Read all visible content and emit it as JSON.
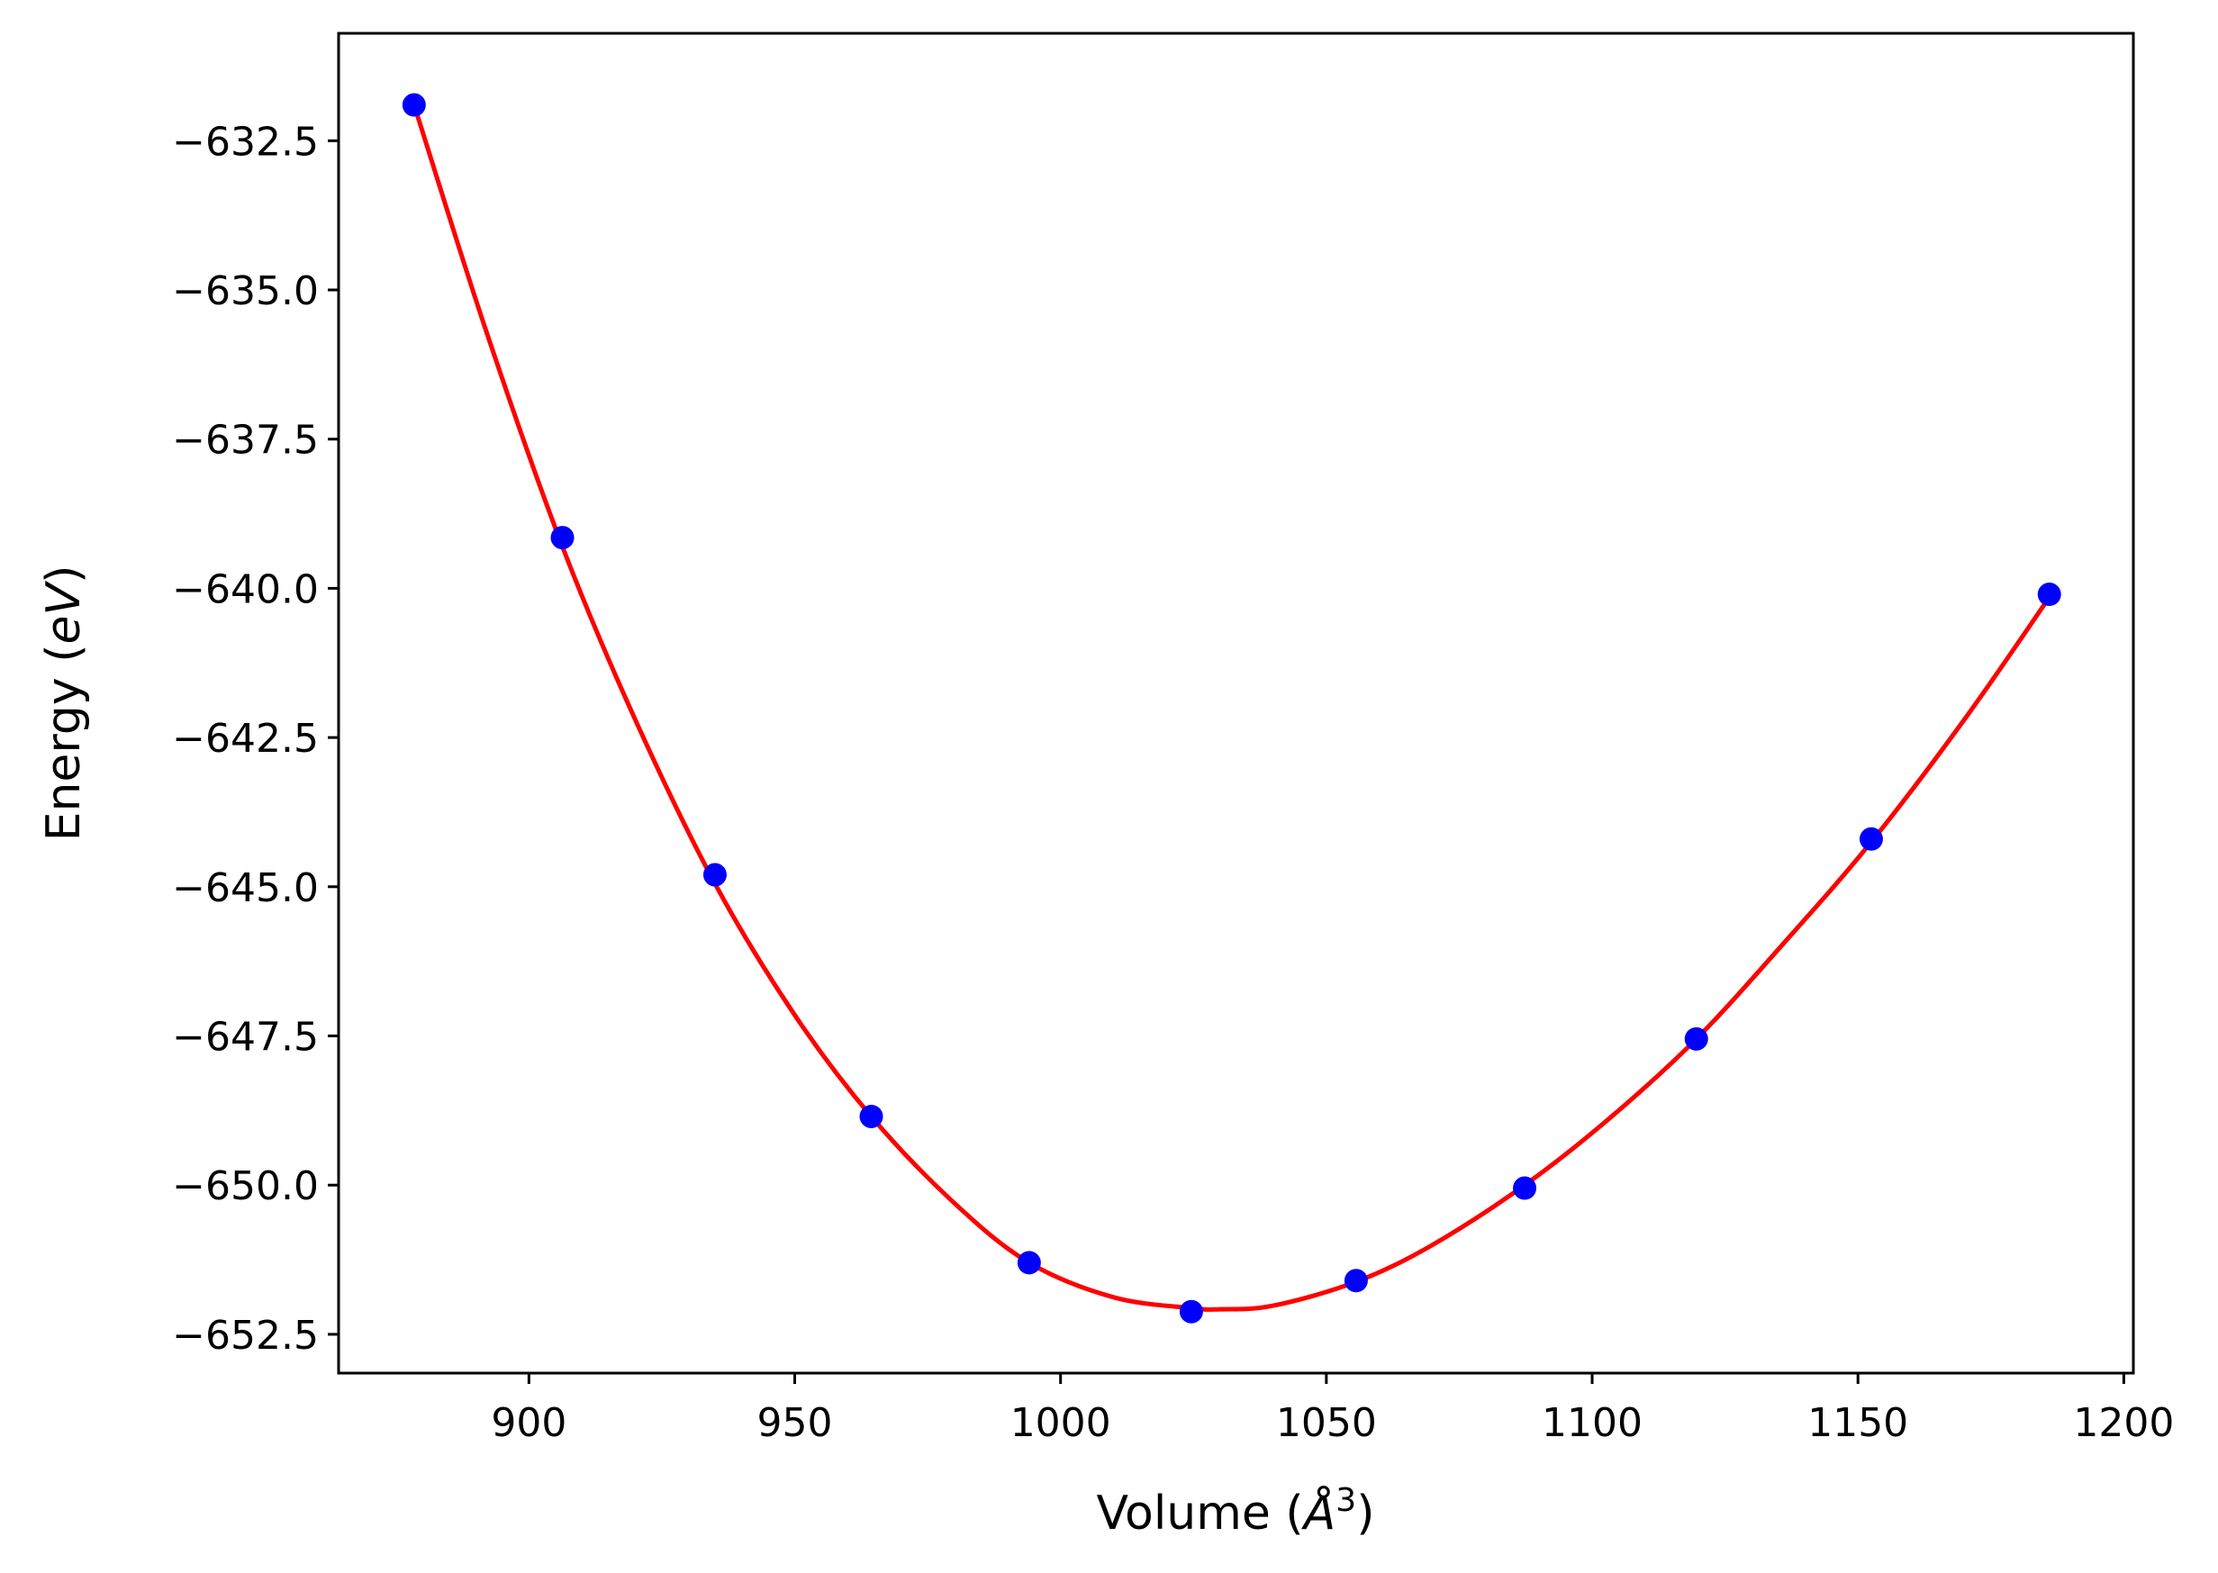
{
  "chart_data": {
    "type": "scatter",
    "title": "",
    "xlabel": {
      "prefix": "Volume (",
      "italic": "Å",
      "sup": "3",
      "suffix": ")"
    },
    "ylabel": {
      "prefix": "Energy (",
      "italic": "eV",
      "suffix": ")"
    },
    "xlim": [
      864.2,
      1201.8
    ],
    "ylim": [
      -653.15,
      -630.7
    ],
    "xticks": [
      900,
      950,
      1000,
      1050,
      1100,
      1150,
      1200
    ],
    "xtick_labels": [
      "900",
      "950",
      "1000",
      "1050",
      "1100",
      "1150",
      "1200"
    ],
    "yticks": [
      -632.5,
      -635.0,
      -637.5,
      -640.0,
      -642.5,
      -645.0,
      -647.5,
      -650.0,
      -652.5
    ],
    "ytick_labels": [
      "−632.5",
      "−635.0",
      "−637.5",
      "−640.0",
      "−642.5",
      "−645.0",
      "−647.5",
      "−650.0",
      "−652.5"
    ],
    "grid": false,
    "legend": "none",
    "series": [
      {
        "type": "scatter",
        "color": "#0000ff",
        "x": [
          878.4,
          906.3,
          935.0,
          964.4,
          994.1,
          1024.6,
          1055.6,
          1087.3,
          1119.6,
          1152.5,
          1186.0
        ],
        "y": [
          -631.9,
          -639.15,
          -644.8,
          -648.85,
          -651.3,
          -652.12,
          -651.6,
          -650.05,
          -647.55,
          -644.2,
          -640.1
        ]
      },
      {
        "type": "line",
        "color": "#ff0000",
        "x": [
          878.4,
          892,
          906.3,
          920,
          935.0,
          950,
          964.4,
          980,
          994.1,
          1010,
          1024.6,
          1030,
          1040,
          1055.6,
          1070,
          1087.3,
          1103,
          1119.6,
          1136,
          1152.5,
          1170,
          1186.0
        ],
        "y": [
          -631.9,
          -635.7,
          -639.3,
          -642.2,
          -644.95,
          -647.15,
          -648.85,
          -650.3,
          -651.3,
          -651.88,
          -652.06,
          -652.08,
          -652.02,
          -651.62,
          -651.0,
          -650.0,
          -648.9,
          -647.55,
          -645.95,
          -644.25,
          -642.2,
          -640.15
        ]
      }
    ]
  }
}
